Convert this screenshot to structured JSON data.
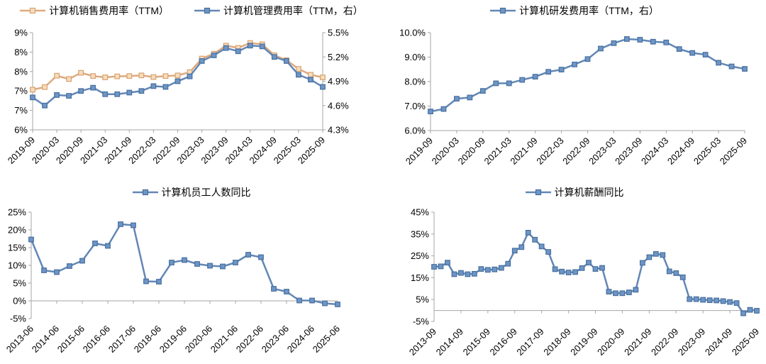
{
  "page": {
    "background": "#FFFFFF",
    "axis_color": "#A6A6A6",
    "text_color": "#000000"
  },
  "chart_data": [
    {
      "type": "line",
      "panel": "top-left",
      "x": [
        "2019-09",
        "2019-12",
        "2020-03",
        "2020-06",
        "2020-09",
        "2020-12",
        "2021-03",
        "2021-06",
        "2021-09",
        "2021-12",
        "2022-03",
        "2022-06",
        "2022-09",
        "2022-12",
        "2023-03",
        "2023-06",
        "2023-09",
        "2023-12",
        "2024-03",
        "2024-06",
        "2024-09",
        "2024-12",
        "2025-03",
        "2025-06",
        "2025-09"
      ],
      "x_label_every": 2,
      "x_axis_at_zero": false,
      "left_axis": {
        "min": 6.0,
        "max": 9.0,
        "ticks": [
          {
            "label": "9%",
            "value": 9.0
          },
          {
            "label": "8%",
            "value": 8.4
          },
          {
            "label": "8%",
            "value": 7.8
          },
          {
            "label": "7%",
            "value": 7.2
          },
          {
            "label": "7%",
            "value": 6.6
          },
          {
            "label": "6%",
            "value": 6.0
          }
        ]
      },
      "right_axis": {
        "min": 4.3,
        "max": 5.5,
        "ticks": [
          {
            "label": "5.5%",
            "value": 5.5
          },
          {
            "label": "5.2%",
            "value": 5.2
          },
          {
            "label": "4.9%",
            "value": 4.9
          },
          {
            "label": "4.6%",
            "value": 4.6
          },
          {
            "label": "4.3%",
            "value": 4.3
          }
        ]
      },
      "series": [
        {
          "name": "计算机销售费用率（TTM）",
          "axis": "left",
          "color": "#DEA97E",
          "marker_fill": "#F5DCBE",
          "marker_stroke": "#D9A26E",
          "values": [
            7.24,
            7.32,
            7.67,
            7.57,
            7.76,
            7.66,
            7.62,
            7.65,
            7.66,
            7.68,
            7.63,
            7.66,
            7.68,
            7.78,
            8.2,
            8.35,
            8.6,
            8.53,
            8.68,
            8.64,
            8.3,
            8.15,
            7.88,
            7.7,
            7.62
          ]
        },
        {
          "name": "计算机管理费用率（TTM，右）",
          "axis": "right",
          "color": "#6287B5",
          "marker_fill": "#6D95C5",
          "marker_stroke": "#486F9E",
          "values": [
            4.7,
            4.6,
            4.73,
            4.72,
            4.78,
            4.82,
            4.74,
            4.74,
            4.76,
            4.78,
            4.84,
            4.83,
            4.9,
            4.96,
            5.15,
            5.22,
            5.31,
            5.27,
            5.34,
            5.33,
            5.2,
            5.15,
            4.98,
            4.92,
            4.83
          ]
        }
      ]
    },
    {
      "type": "line",
      "panel": "top-right",
      "x": [
        "2019-09",
        "2019-12",
        "2020-03",
        "2020-06",
        "2020-09",
        "2020-12",
        "2021-03",
        "2021-06",
        "2021-09",
        "2021-12",
        "2022-03",
        "2022-06",
        "2022-09",
        "2022-12",
        "2023-03",
        "2023-06",
        "2023-09",
        "2023-12",
        "2024-03",
        "2024-06",
        "2024-09",
        "2024-12",
        "2025-03",
        "2025-06",
        "2025-09"
      ],
      "x_label_every": 2,
      "x_axis_at_zero": false,
      "left_axis": {
        "min": 6.0,
        "max": 10.0,
        "ticks": [
          {
            "label": "10.0%",
            "value": 10.0
          },
          {
            "label": "9.0%",
            "value": 9.0
          },
          {
            "label": "8.0%",
            "value": 8.0
          },
          {
            "label": "7.0%",
            "value": 7.0
          },
          {
            "label": "6.0%",
            "value": 6.0
          }
        ]
      },
      "series": [
        {
          "name": "计算机研发费用率（TTM，右）",
          "axis": "left",
          "color": "#6287B5",
          "marker_fill": "#6D95C5",
          "marker_stroke": "#486F9E",
          "values": [
            6.78,
            6.88,
            7.3,
            7.35,
            7.62,
            7.93,
            7.93,
            8.07,
            8.2,
            8.4,
            8.49,
            8.7,
            8.92,
            9.35,
            9.57,
            9.74,
            9.71,
            9.63,
            9.6,
            9.33,
            9.17,
            9.1,
            8.77,
            8.62,
            8.52
          ]
        }
      ]
    },
    {
      "type": "line",
      "panel": "bottom-left",
      "x": [
        "2013-06",
        "2013-12",
        "2014-06",
        "2014-12",
        "2015-06",
        "2015-12",
        "2016-06",
        "2016-12",
        "2017-06",
        "2017-12",
        "2018-06",
        "2018-12",
        "2019-06",
        "2019-12",
        "2020-06",
        "2020-12",
        "2021-06",
        "2021-12",
        "2022-06",
        "2022-12",
        "2023-06",
        "2023-12",
        "2024-06",
        "2024-12",
        "2025-06"
      ],
      "x_label_every": 2,
      "x_axis_at_zero": true,
      "left_axis": {
        "min": -5,
        "max": 25,
        "ticks": [
          {
            "label": "25%",
            "value": 25
          },
          {
            "label": "20%",
            "value": 20
          },
          {
            "label": "15%",
            "value": 15
          },
          {
            "label": "10%",
            "value": 10
          },
          {
            "label": "5%",
            "value": 5
          },
          {
            "label": "0%",
            "value": 0
          },
          {
            "label": "-5%",
            "value": -5
          }
        ]
      },
      "series": [
        {
          "name": "计算机员工人数同比",
          "axis": "left",
          "color": "#6287B5",
          "marker_fill": "#6D95C5",
          "marker_stroke": "#486F9E",
          "values": [
            17.3,
            8.6,
            8.1,
            9.8,
            11.3,
            16.2,
            15.5,
            21.6,
            21.3,
            5.5,
            5.4,
            10.8,
            11.5,
            10.4,
            9.9,
            9.7,
            10.8,
            13.0,
            12.3,
            3.4,
            2.6,
            0.1,
            0.1,
            -0.7,
            -1.0
          ]
        }
      ]
    },
    {
      "type": "line",
      "panel": "bottom-right",
      "x": [
        "2013-09",
        "2013-12",
        "2014-03",
        "2014-06",
        "2014-09",
        "2014-12",
        "2015-03",
        "2015-06",
        "2015-09",
        "2015-12",
        "2016-03",
        "2016-06",
        "2016-09",
        "2016-12",
        "2017-03",
        "2017-06",
        "2017-09",
        "2017-12",
        "2018-03",
        "2018-06",
        "2018-09",
        "2018-12",
        "2019-03",
        "2019-06",
        "2019-09",
        "2019-12",
        "2020-03",
        "2020-06",
        "2020-09",
        "2020-12",
        "2021-03",
        "2021-06",
        "2021-09",
        "2021-12",
        "2022-03",
        "2022-06",
        "2022-09",
        "2022-12",
        "2023-03",
        "2023-06",
        "2023-09",
        "2023-12",
        "2024-03",
        "2024-06",
        "2024-09",
        "2024-12",
        "2025-03",
        "2025-06",
        "2025-09"
      ],
      "x_label_every": 4,
      "x_axis_at_zero": true,
      "left_axis": {
        "min": -5,
        "max": 45,
        "ticks": [
          {
            "label": "45%",
            "value": 45
          },
          {
            "label": "35%",
            "value": 35
          },
          {
            "label": "25%",
            "value": 25
          },
          {
            "label": "15%",
            "value": 15
          },
          {
            "label": "5%",
            "value": 5
          },
          {
            "label": "-5%",
            "value": -5
          }
        ]
      },
      "series": [
        {
          "name": "计算机薪酬同比",
          "axis": "left",
          "color": "#6287B5",
          "marker_fill": "#6D95C5",
          "marker_stroke": "#486F9E",
          "values": [
            20.0,
            20.2,
            21.9,
            16.6,
            17.2,
            16.6,
            16.8,
            19.0,
            18.6,
            18.8,
            19.5,
            21.4,
            27.4,
            29.0,
            35.6,
            32.4,
            29.3,
            26.8,
            18.9,
            17.8,
            17.4,
            17.6,
            19.4,
            21.9,
            19.0,
            19.5,
            8.6,
            7.9,
            7.9,
            8.3,
            9.5,
            21.8,
            24.4,
            25.9,
            25.4,
            17.9,
            17.1,
            15.2,
            5.2,
            5.2,
            4.9,
            4.7,
            4.6,
            4.3,
            3.9,
            3.4,
            -1.3,
            0.3,
            -0.1
          ]
        }
      ]
    }
  ]
}
